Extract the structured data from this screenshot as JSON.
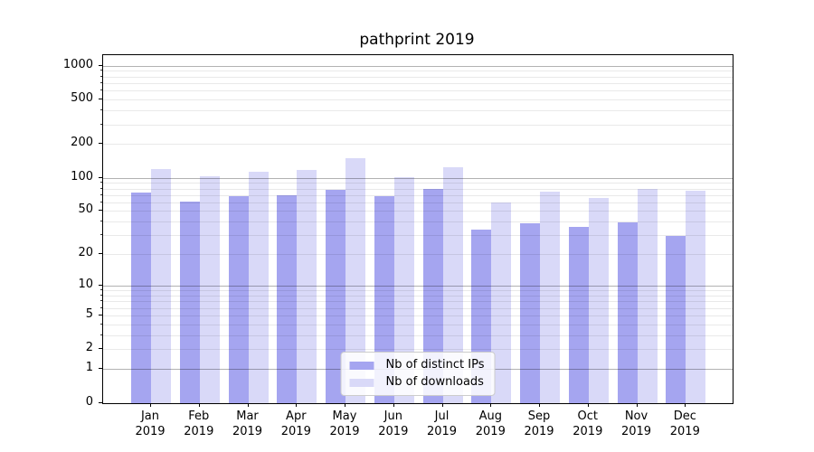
{
  "title": "pathprint 2019",
  "chart_data": {
    "type": "bar",
    "title": "pathprint 2019",
    "xlabel": "",
    "ylabel": "",
    "categories": [
      "Jan 2019",
      "Feb 2019",
      "Mar 2019",
      "Apr 2019",
      "May 2019",
      "Jun 2019",
      "Jul 2019",
      "Aug 2019",
      "Sep 2019",
      "Oct 2019",
      "Nov 2019",
      "Dec 2019"
    ],
    "series": [
      {
        "name": "Nb of distinct IPs",
        "color": "#a5a5f0",
        "values": [
          74,
          61,
          68,
          70,
          78,
          69,
          79,
          34,
          39,
          36,
          40,
          30
        ]
      },
      {
        "name": "Nb of downloads",
        "color": "#d9d9f8",
        "values": [
          120,
          103,
          113,
          117,
          150,
          102,
          126,
          60,
          76,
          66,
          80,
          77
        ]
      }
    ],
    "yscale": "log1p",
    "yticks": [
      0,
      1,
      2,
      5,
      10,
      20,
      50,
      100,
      200,
      500,
      1000
    ],
    "ylim": [
      0,
      1250
    ],
    "grid": true,
    "grid_major_values": [
      1,
      10,
      100,
      1000
    ],
    "grid_minor_values": [
      2,
      3,
      4,
      5,
      6,
      7,
      8,
      9,
      20,
      30,
      40,
      50,
      60,
      70,
      80,
      90,
      200,
      300,
      400,
      500,
      600,
      700,
      800,
      900
    ],
    "legend_position": "lower center"
  }
}
